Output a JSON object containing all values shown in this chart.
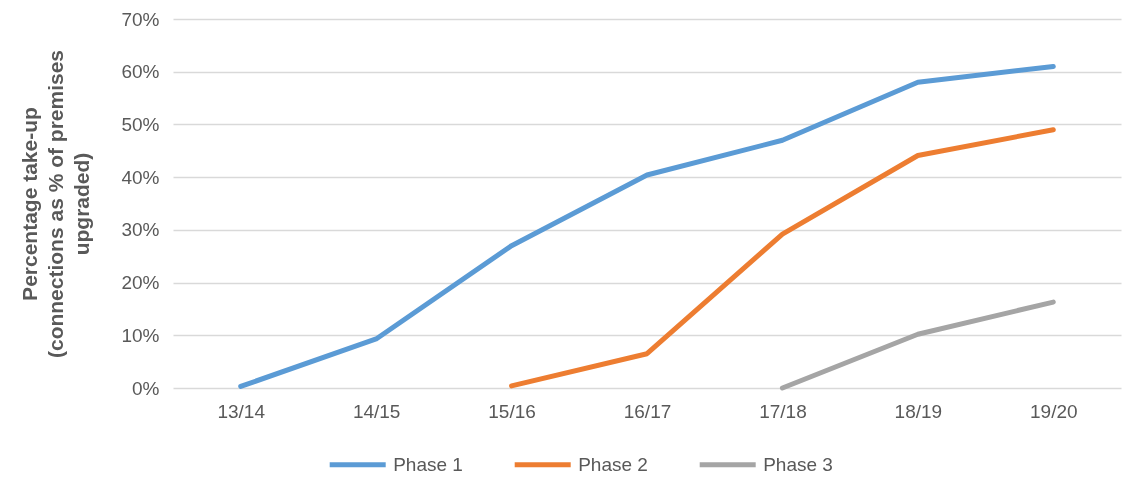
{
  "chart_data": {
    "type": "line",
    "ylabel": "Percentage take-up\n(connections as % of premises\nupgraded)",
    "categories": [
      "13/14",
      "14/15",
      "15/16",
      "16/17",
      "17/18",
      "18/19",
      "19/20"
    ],
    "series": [
      {
        "name": "Phase 1",
        "color": "#5b9bd5",
        "values": [
          0.3,
          9.3,
          27,
          40.4,
          47,
          58,
          61
        ]
      },
      {
        "name": "Phase 2",
        "color": "#ed7d31",
        "values": [
          null,
          null,
          0.4,
          6.5,
          29.2,
          44.1,
          49
        ]
      },
      {
        "name": "Phase 3",
        "color": "#a5a5a5",
        "values": [
          null,
          null,
          null,
          null,
          0,
          10.2,
          16.3
        ]
      }
    ],
    "ylim": [
      0,
      70
    ],
    "yticks": [
      {
        "value": 0,
        "label": "0%"
      },
      {
        "value": 10,
        "label": "10%"
      },
      {
        "value": 20,
        "label": "20%"
      },
      {
        "value": 30,
        "label": "30%"
      },
      {
        "value": 40,
        "label": "40%"
      },
      {
        "value": 50,
        "label": "50%"
      },
      {
        "value": 60,
        "label": "60%"
      },
      {
        "value": 70,
        "label": "70%"
      }
    ],
    "grid": "y",
    "legend": "bottom",
    "line_style": "solid"
  }
}
